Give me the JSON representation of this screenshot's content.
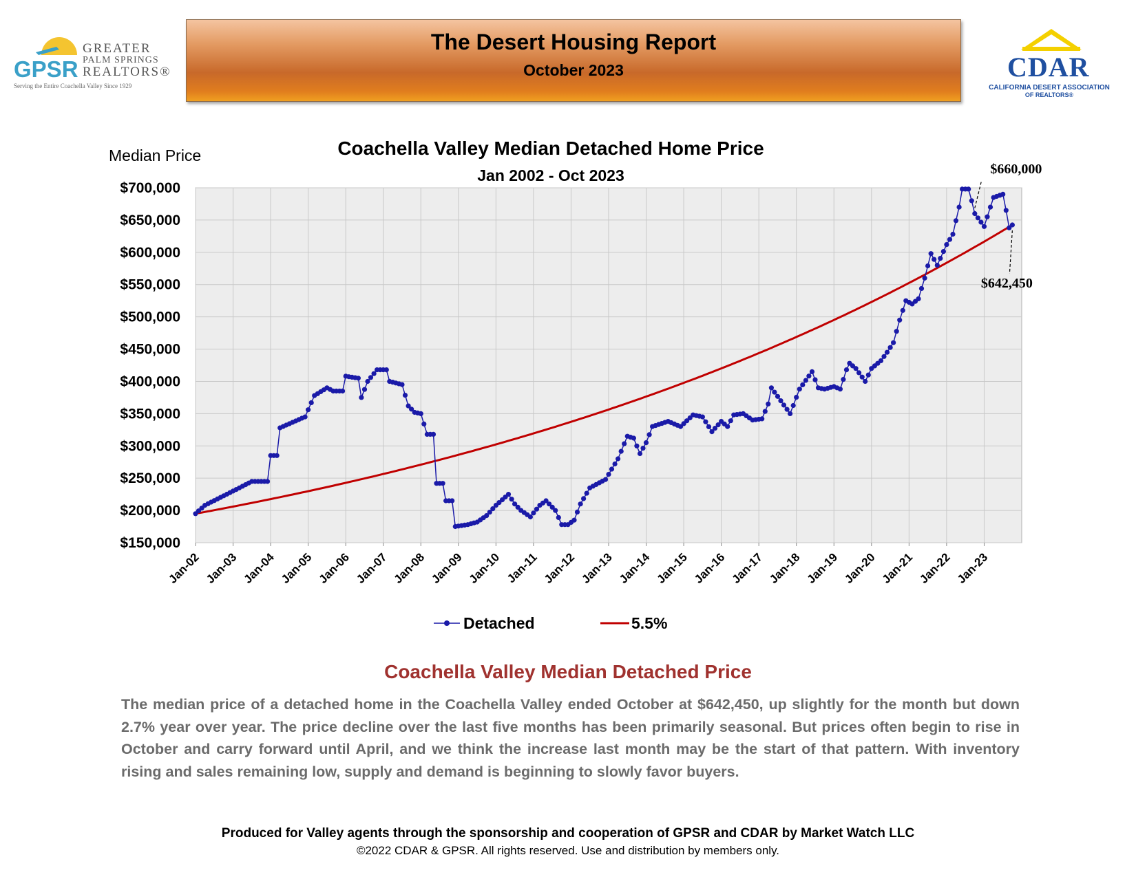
{
  "header": {
    "title": "The Desert Housing Report",
    "subtitle": "October 2023"
  },
  "logos": {
    "gpsr": {
      "letters": "GPSR",
      "name_line1": "GREATER",
      "name_line2": "PALM SPRINGS",
      "name_line3": "REALTORS®",
      "tagline": "Serving the Entire Coachella Valley Since 1929"
    },
    "cdar": {
      "word": "CDAR",
      "line1": "CALIFORNIA DESERT ASSOCIATION",
      "line2": "OF REALTORS®"
    }
  },
  "chart_data": {
    "type": "line",
    "title": "Coachella Valley Median Detached Home Price",
    "subtitle": "Jan 2002 - Oct 2023",
    "ylabel": "Median Price",
    "xlabel": "",
    "ylim": [
      150000,
      700000
    ],
    "y_ticks": [
      "$700,000",
      "$650,000",
      "$600,000",
      "$550,000",
      "$500,000",
      "$450,000",
      "$400,000",
      "$350,000",
      "$300,000",
      "$250,000",
      "$200,000",
      "$150,000"
    ],
    "x_ticks": [
      "Jan-02",
      "Jan-03",
      "Jan-04",
      "Jan-05",
      "Jan-06",
      "Jan-07",
      "Jan-08",
      "Jan-09",
      "Jan-10",
      "Jan-11",
      "Jan-12",
      "Jan-13",
      "Jan-14",
      "Jan-15",
      "Jan-16",
      "Jan-17",
      "Jan-18",
      "Jan-19",
      "Jan-20",
      "Jan-21",
      "Jan-22",
      "Jan-23"
    ],
    "grid": true,
    "legend_position": "bottom",
    "colors": {
      "detached": "#1a1aa8",
      "trend": "#c00000",
      "plot_bg": "#ededed"
    },
    "series": [
      {
        "name": "Detached",
        "x_start": "Jan-02",
        "frequency": "monthly",
        "anchors": [
          [
            "Jan-02",
            195000
          ],
          [
            "Apr-02",
            208000
          ],
          [
            "Jan-03",
            230000
          ],
          [
            "Jul-03",
            245000
          ],
          [
            "Dec-03",
            245000
          ],
          [
            "Jan-04",
            285000
          ],
          [
            "Mar-04",
            285000
          ],
          [
            "Apr-04",
            328000
          ],
          [
            "Dec-04",
            345000
          ],
          [
            "Mar-05",
            378000
          ],
          [
            "Jul-05",
            390000
          ],
          [
            "Sep-05",
            385000
          ],
          [
            "Dec-05",
            385000
          ],
          [
            "Jan-06",
            408000
          ],
          [
            "May-06",
            405000
          ],
          [
            "Jun-06",
            375000
          ],
          [
            "Aug-06",
            400000
          ],
          [
            "Nov-06",
            418000
          ],
          [
            "Feb-07",
            418000
          ],
          [
            "Mar-07",
            400000
          ],
          [
            "Jul-07",
            395000
          ],
          [
            "Sep-07",
            362000
          ],
          [
            "Nov-07",
            352000
          ],
          [
            "Jan-08",
            350000
          ],
          [
            "Mar-08",
            318000
          ],
          [
            "May-08",
            318000
          ],
          [
            "Jun-08",
            242000
          ],
          [
            "Aug-08",
            242000
          ],
          [
            "Sep-08",
            215000
          ],
          [
            "Nov-08",
            215000
          ],
          [
            "Dec-08",
            175000
          ],
          [
            "Apr-09",
            178000
          ],
          [
            "Jul-09",
            182000
          ],
          [
            "Oct-09",
            192000
          ],
          [
            "Jan-10",
            208000
          ],
          [
            "May-10",
            225000
          ],
          [
            "Jul-10",
            210000
          ],
          [
            "Sep-10",
            200000
          ],
          [
            "Dec-10",
            190000
          ],
          [
            "Mar-11",
            208000
          ],
          [
            "May-11",
            215000
          ],
          [
            "Aug-11",
            200000
          ],
          [
            "Oct-11",
            178000
          ],
          [
            "Dec-11",
            178000
          ],
          [
            "Feb-12",
            185000
          ],
          [
            "Apr-12",
            210000
          ],
          [
            "Jul-12",
            235000
          ],
          [
            "Dec-12",
            248000
          ],
          [
            "Apr-13",
            280000
          ],
          [
            "Jul-13",
            315000
          ],
          [
            "Sep-13",
            312000
          ],
          [
            "Nov-13",
            288000
          ],
          [
            "Jan-14",
            305000
          ],
          [
            "Mar-14",
            330000
          ],
          [
            "Aug-14",
            338000
          ],
          [
            "Dec-14",
            330000
          ],
          [
            "Apr-15",
            348000
          ],
          [
            "Jul-15",
            345000
          ],
          [
            "Oct-15",
            322000
          ],
          [
            "Jan-16",
            338000
          ],
          [
            "Mar-16",
            330000
          ],
          [
            "May-16",
            348000
          ],
          [
            "Aug-16",
            350000
          ],
          [
            "Nov-16",
            340000
          ],
          [
            "Feb-17",
            342000
          ],
          [
            "Apr-17",
            365000
          ],
          [
            "May-17",
            390000
          ],
          [
            "Aug-17",
            370000
          ],
          [
            "Nov-17",
            350000
          ],
          [
            "Feb-18",
            388000
          ],
          [
            "Jun-18",
            415000
          ],
          [
            "Aug-18",
            390000
          ],
          [
            "Oct-18",
            388000
          ],
          [
            "Jan-19",
            392000
          ],
          [
            "Mar-19",
            388000
          ],
          [
            "May-19",
            418000
          ],
          [
            "Jun-19",
            428000
          ],
          [
            "Aug-19",
            420000
          ],
          [
            "Nov-19",
            400000
          ],
          [
            "Jan-20",
            420000
          ],
          [
            "Apr-20",
            432000
          ],
          [
            "Jun-20",
            445000
          ],
          [
            "Aug-20",
            460000
          ],
          [
            "Oct-20",
            495000
          ],
          [
            "Dec-20",
            525000
          ],
          [
            "Feb-21",
            520000
          ],
          [
            "Apr-21",
            528000
          ],
          [
            "Jun-21",
            560000
          ],
          [
            "Aug-21",
            598000
          ],
          [
            "Oct-21",
            580000
          ],
          [
            "Jan-22",
            612000
          ],
          [
            "Mar-22",
            628000
          ],
          [
            "May-22",
            670000
          ],
          [
            "Jun-22",
            698000
          ],
          [
            "Aug-22",
            698000
          ],
          [
            "Sep-22",
            680000
          ],
          [
            "Oct-22",
            660000
          ],
          [
            "Jan-23",
            640000
          ],
          [
            "Apr-23",
            685000
          ],
          [
            "Jul-23",
            690000
          ],
          [
            "Aug-23",
            665000
          ],
          [
            "Sep-23",
            638000
          ],
          [
            "Oct-23",
            642450
          ]
        ]
      },
      {
        "name": "5.5%",
        "start_value": 195000,
        "end_value": 642450,
        "x_start": "Jan-02",
        "x_end": "Oct-23"
      }
    ],
    "annotations": [
      {
        "text": "$660,000",
        "x": "Oct-22",
        "y": 660000
      },
      {
        "text": "$642,450",
        "x": "Oct-23",
        "y": 642450
      }
    ]
  },
  "commentary": {
    "heading": "Coachella Valley Median Detached Price",
    "body": "The median price of a detached home in the Coachella Valley ended October at $642,450, up slightly for the month but down 2.7% year over year. The price decline over the last five months has been primarily seasonal. But prices often begin to rise in October and carry forward until April, and we think the increase last month may be the start of that pattern. With inventory rising and sales remaining low, supply and demand is beginning to slowly favor buyers."
  },
  "footer": {
    "line1": "Produced for Valley agents through the sponsorship and cooperation of GPSR and CDAR by Market Watch LLC",
    "line2": "©2022 CDAR & GPSR.  All rights reserved.  Use and distribution by members only."
  }
}
